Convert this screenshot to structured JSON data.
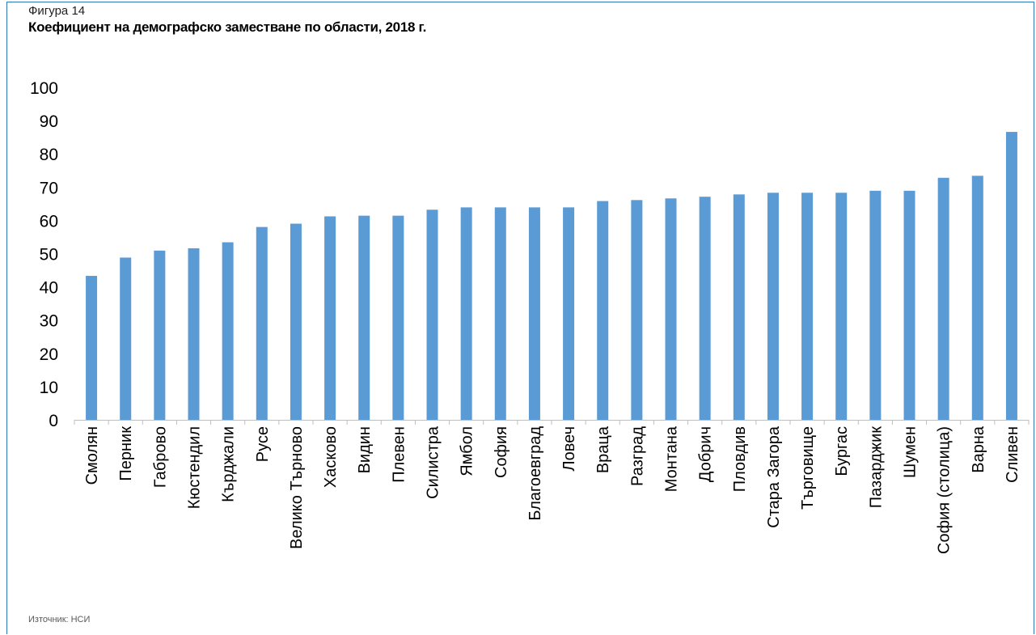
{
  "figure": {
    "label": "Фигура 14",
    "title": "Коефициент на демографско заместване по области, 2018 г.",
    "source": "Източник: НСИ"
  },
  "colors": {
    "bar": "#5b9bd5",
    "frame": "#2e75b6",
    "axis": "#bfbfbf"
  },
  "chart_data": {
    "type": "bar",
    "title": "Коефициент на демографско заместване по области, 2018 г.",
    "xlabel": "",
    "ylabel": "",
    "ylim": [
      0,
      100
    ],
    "yticks": [
      0,
      10,
      20,
      30,
      40,
      50,
      60,
      70,
      80,
      90,
      100
    ],
    "grid": false,
    "legend": "none",
    "categories": [
      "Смолян",
      "Перник",
      "Габрово",
      "Кюстендил",
      "Кърджали",
      "Русе",
      "Велико Търново",
      "Хасково",
      "Видин",
      "Плевен",
      "Силистра",
      "Ямбол",
      "София",
      "Благоевград",
      "Ловеч",
      "Враца",
      "Разград",
      "Монтана",
      "Добрич",
      "Пловдив",
      "Стара Загора",
      "Търговище",
      "Бургас",
      "Пазарджик",
      "Шумен",
      "София (столица)",
      "Варна",
      "Сливен"
    ],
    "values": [
      43.3,
      48.8,
      50.9,
      51.6,
      53.4,
      58.0,
      59.0,
      61.2,
      61.4,
      61.4,
      63.2,
      63.9,
      63.9,
      63.9,
      63.9,
      65.8,
      66.1,
      66.6,
      67.1,
      67.8,
      68.3,
      68.3,
      68.3,
      68.9,
      68.9,
      72.8,
      73.4,
      86.6
    ]
  }
}
